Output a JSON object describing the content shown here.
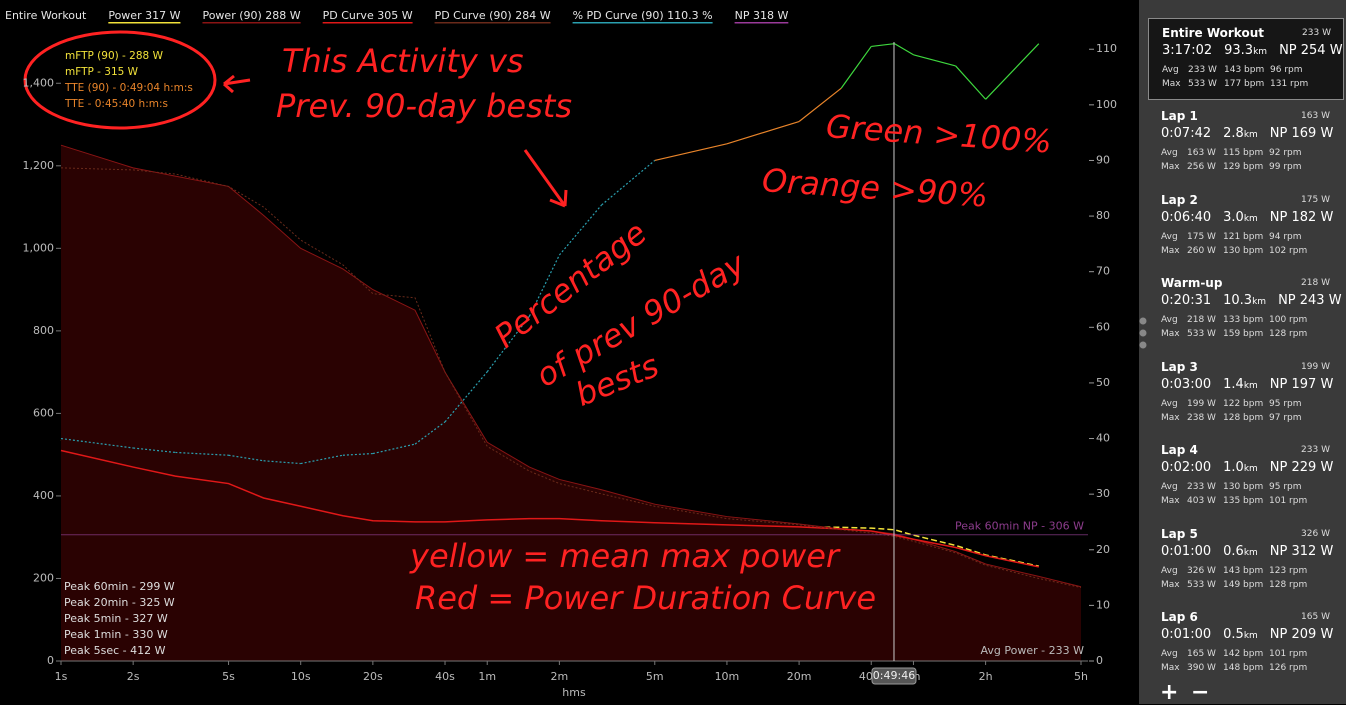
{
  "chart_data": {
    "type": "line",
    "scope": "Entire Workout",
    "x_label": "hms",
    "x": [
      1,
      2,
      3,
      5,
      7,
      10,
      15,
      20,
      30,
      40,
      60,
      90,
      120,
      180,
      300,
      600,
      1200,
      1800,
      2400,
      3000,
      3600,
      5400,
      7200,
      12000,
      18000
    ],
    "xlim": [
      1,
      18000
    ],
    "xscale": "log",
    "xticks": [
      {
        "value": 1,
        "label": "1s"
      },
      {
        "value": 2,
        "label": "2s"
      },
      {
        "value": 5,
        "label": "5s"
      },
      {
        "value": 10,
        "label": "10s"
      },
      {
        "value": 20,
        "label": "20s"
      },
      {
        "value": 40,
        "label": "40s"
      },
      {
        "value": 60,
        "label": "1m"
      },
      {
        "value": 120,
        "label": "2m"
      },
      {
        "value": 300,
        "label": "5m"
      },
      {
        "value": 600,
        "label": "10m"
      },
      {
        "value": 1200,
        "label": "20m"
      },
      {
        "value": 2400,
        "label": "40m"
      },
      {
        "value": 3600,
        "label": "1h"
      },
      {
        "value": 7200,
        "label": "2h"
      },
      {
        "value": 18000,
        "label": "5h"
      }
    ],
    "ylim": [
      0,
      1500
    ],
    "yticks": [
      0,
      200,
      400,
      600,
      800,
      {
        "value": 1000,
        "label": "1,000"
      },
      {
        "value": 1200,
        "label": "1,200"
      },
      {
        "value": 1400,
        "label": "1,400"
      }
    ],
    "y2lim": [
      0,
      111.3
    ],
    "y2ticks": [
      0,
      10,
      20,
      30,
      40,
      50,
      60,
      70,
      80,
      90,
      100,
      110
    ],
    "series": [
      {
        "name": "Power  317 W",
        "color": "#f2e23a",
        "style": "dashed",
        "values": [
          535,
          480,
          455,
          420,
          390,
          370,
          352,
          345,
          338,
          335,
          332,
          331,
          330,
          329,
          327,
          326,
          325,
          324,
          322,
          318,
          305,
          280,
          257,
          230,
          null
        ]
      },
      {
        "name": "Power (90)  288 W",
        "color": "#8a1414",
        "fill": "#2a0202",
        "style": "area",
        "values": [
          1250,
          1195,
          1175,
          1150,
          1080,
          1000,
          950,
          900,
          850,
          700,
          530,
          470,
          440,
          415,
          380,
          350,
          332,
          320,
          315,
          308,
          295,
          265,
          235,
          205,
          180
        ]
      },
      {
        "name": "PD Curve  305 W",
        "color": "#e01818",
        "style": "solid",
        "values": [
          510,
          470,
          448,
          430,
          395,
          375,
          352,
          340,
          337,
          337,
          342,
          345,
          345,
          340,
          335,
          330,
          325,
          320,
          315,
          305,
          295,
          275,
          255,
          228,
          null
        ]
      },
      {
        "name": "PD Curve (90)  284 W",
        "color": "#6a2a1a",
        "style": "dotted",
        "values": [
          1195,
          1190,
          1180,
          1150,
          1100,
          1020,
          960,
          890,
          880,
          700,
          520,
          460,
          430,
          405,
          375,
          345,
          330,
          318,
          310,
          302,
          290,
          262,
          232,
          200,
          178
        ]
      },
      {
        "name": "% PD Curve (90)  110.3 %",
        "color": "#2aa0b0",
        "style": "dotted",
        "axis": "y2",
        "thresholds": [
          {
            "min": 90,
            "color": "#e8842a"
          },
          {
            "min": 100,
            "color": "#3ed83e"
          }
        ],
        "values": [
          40,
          38.3,
          37.5,
          37,
          36,
          35.5,
          37,
          37.3,
          39,
          43,
          52,
          62,
          73,
          82,
          90,
          93,
          97,
          103,
          110.5,
          111,
          109,
          107,
          101,
          111,
          null
        ]
      }
    ],
    "np_legend": {
      "text": "NP  318 W",
      "color": "#9a3a9a"
    },
    "reference_line": {
      "value": 306,
      "label": "Peak 60min NP - 306 W",
      "color": "#8c3c8c"
    },
    "cursor": {
      "x": 2986,
      "label": "0:49:46"
    },
    "info": [
      {
        "text": "mFTP (90) - 288 W",
        "color": "#f2e23a"
      },
      {
        "text": "mFTP - 315 W",
        "color": "#f2e23a"
      },
      {
        "text": "TTE (90) - 0:49:04 h:m:s",
        "color": "#e8842a"
      },
      {
        "text": "TTE - 0:45:40 h:m:s",
        "color": "#e8842a"
      }
    ],
    "peaks": [
      "Peak 60min - 299 W",
      "Peak 20min - 325 W",
      "Peak 5min - 327 W",
      "Peak 1min - 330 W",
      "Peak 5sec - 412 W"
    ],
    "avg_power": "Avg Power - 233 W"
  },
  "annotations": [
    "This Activity vs",
    "Prev. 90-day bests",
    "Green >100%",
    "Orange >90%",
    "Percentage",
    "of prev 90-day",
    "bests",
    "yellow = mean max power",
    "Red = Power Duration Curve"
  ],
  "laps": [
    {
      "title": "Entire Workout",
      "right": "233 W",
      "time": "3:17:02",
      "dist": "93.3",
      "unit": "km",
      "np": "NP 254 W",
      "avg": [
        "Avg",
        "233 W",
        "143 bpm",
        "96 rpm"
      ],
      "max": [
        "Max",
        "533 W",
        "177 bpm",
        "131 rpm"
      ]
    },
    {
      "title": "Lap 1",
      "right": "163 W",
      "time": "0:07:42",
      "dist": "2.8",
      "unit": "km",
      "np": "NP 169 W",
      "avg": [
        "Avg",
        "163 W",
        "115 bpm",
        "92 rpm"
      ],
      "max": [
        "Max",
        "256 W",
        "129 bpm",
        "99 rpm"
      ]
    },
    {
      "title": "Lap 2",
      "right": "175 W",
      "time": "0:06:40",
      "dist": "3.0",
      "unit": "km",
      "np": "NP 182 W",
      "avg": [
        "Avg",
        "175 W",
        "121 bpm",
        "94 rpm"
      ],
      "max": [
        "Max",
        "260 W",
        "130 bpm",
        "102 rpm"
      ]
    },
    {
      "title": "Warm-up",
      "right": "218 W",
      "time": "0:20:31",
      "dist": "10.3",
      "unit": "km",
      "np": "NP 243 W",
      "avg": [
        "Avg",
        "218 W",
        "133 bpm",
        "100 rpm"
      ],
      "max": [
        "Max",
        "533 W",
        "159 bpm",
        "128 rpm"
      ]
    },
    {
      "title": "Lap 3",
      "right": "199 W",
      "time": "0:03:00",
      "dist": "1.4",
      "unit": "km",
      "np": "NP 197 W",
      "avg": [
        "Avg",
        "199 W",
        "122 bpm",
        "95 rpm"
      ],
      "max": [
        "Max",
        "238 W",
        "128 bpm",
        "97 rpm"
      ]
    },
    {
      "title": "Lap 4",
      "right": "233 W",
      "time": "0:02:00",
      "dist": "1.0",
      "unit": "km",
      "np": "NP 229 W",
      "avg": [
        "Avg",
        "233 W",
        "130 bpm",
        "95 rpm"
      ],
      "max": [
        "Max",
        "403 W",
        "135 bpm",
        "101 rpm"
      ]
    },
    {
      "title": "Lap 5",
      "right": "326 W",
      "time": "0:01:00",
      "dist": "0.6",
      "unit": "km",
      "np": "NP 312 W",
      "avg": [
        "Avg",
        "326 W",
        "143 bpm",
        "123 rpm"
      ],
      "max": [
        "Max",
        "533 W",
        "149 bpm",
        "128 rpm"
      ]
    },
    {
      "title": "Lap 6",
      "right": "165 W",
      "time": "0:01:00",
      "dist": "0.5",
      "unit": "km",
      "np": "NP 209 W",
      "avg": [
        "Avg",
        "165 W",
        "142 bpm",
        "101 rpm"
      ],
      "max": [
        "Max",
        "390 W",
        "148 bpm",
        "126 rpm"
      ]
    }
  ],
  "buttons": [
    "+",
    "−"
  ]
}
